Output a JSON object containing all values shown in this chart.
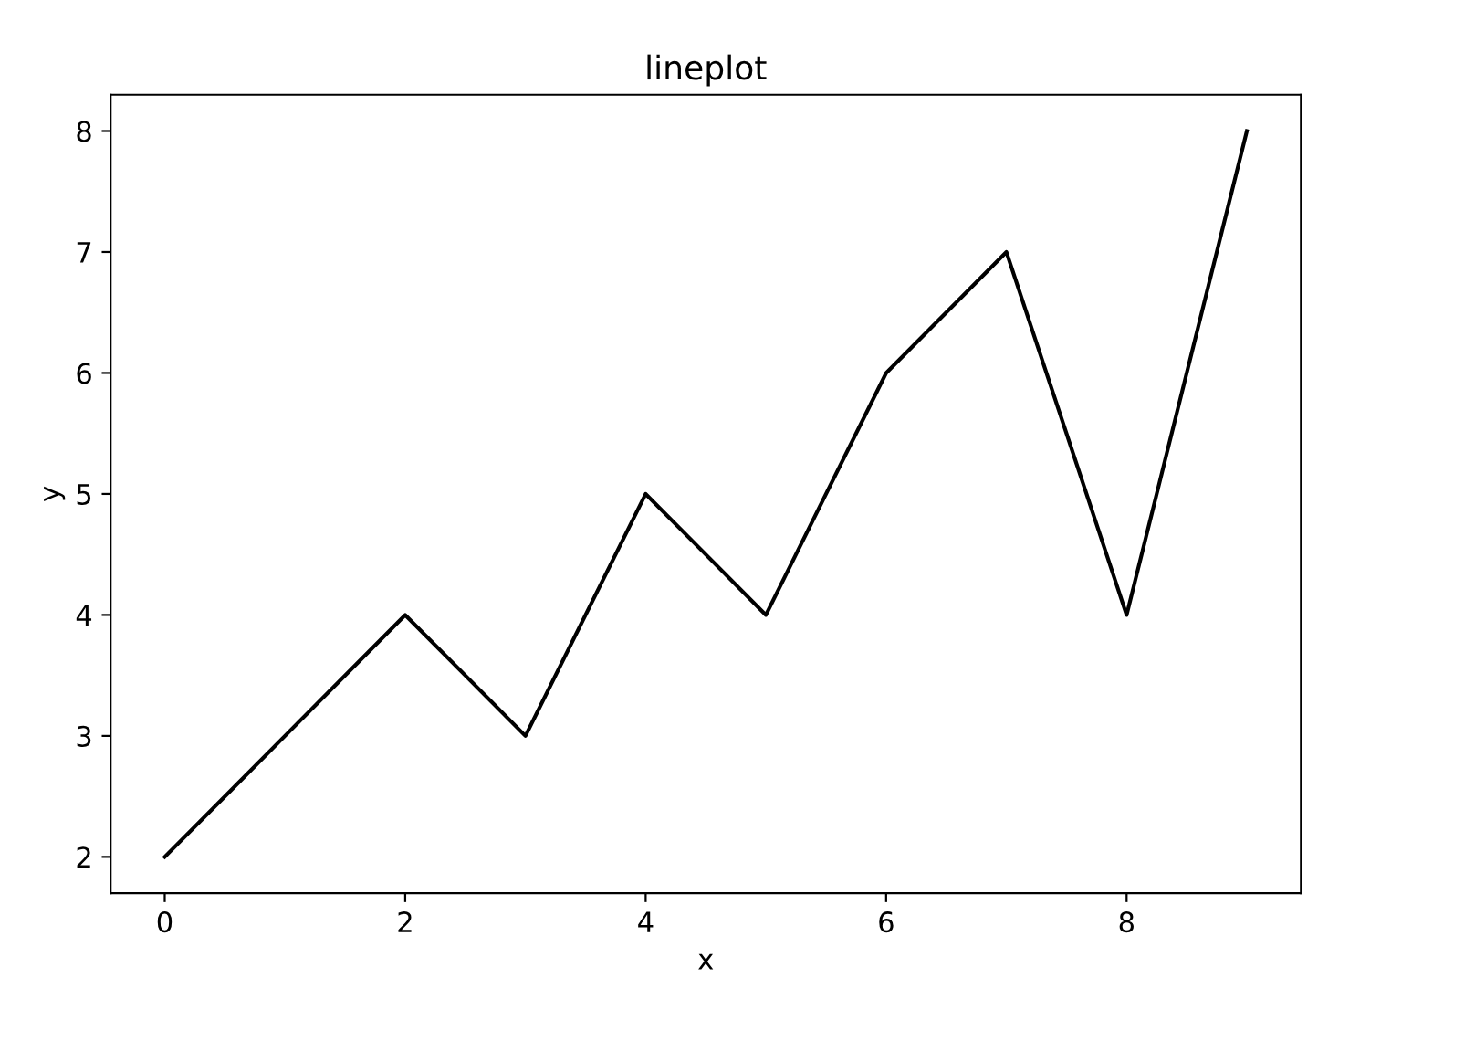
{
  "chart_data": {
    "type": "line",
    "title": "lineplot",
    "xlabel": "x",
    "ylabel": "y",
    "x": [
      0,
      1,
      2,
      3,
      4,
      5,
      6,
      7,
      8,
      9
    ],
    "series": [
      {
        "color": "#000000",
        "values": [
          2,
          3,
          4,
          3,
          5,
          4,
          6,
          7,
          4,
          8
        ]
      }
    ],
    "xlim": [
      -0.45,
      9.45
    ],
    "ylim": [
      1.7,
      8.3
    ],
    "xticks": [
      0,
      2,
      4,
      6,
      8
    ],
    "yticks": [
      2,
      3,
      4,
      5,
      6,
      7,
      8
    ],
    "line_style": "solid"
  }
}
